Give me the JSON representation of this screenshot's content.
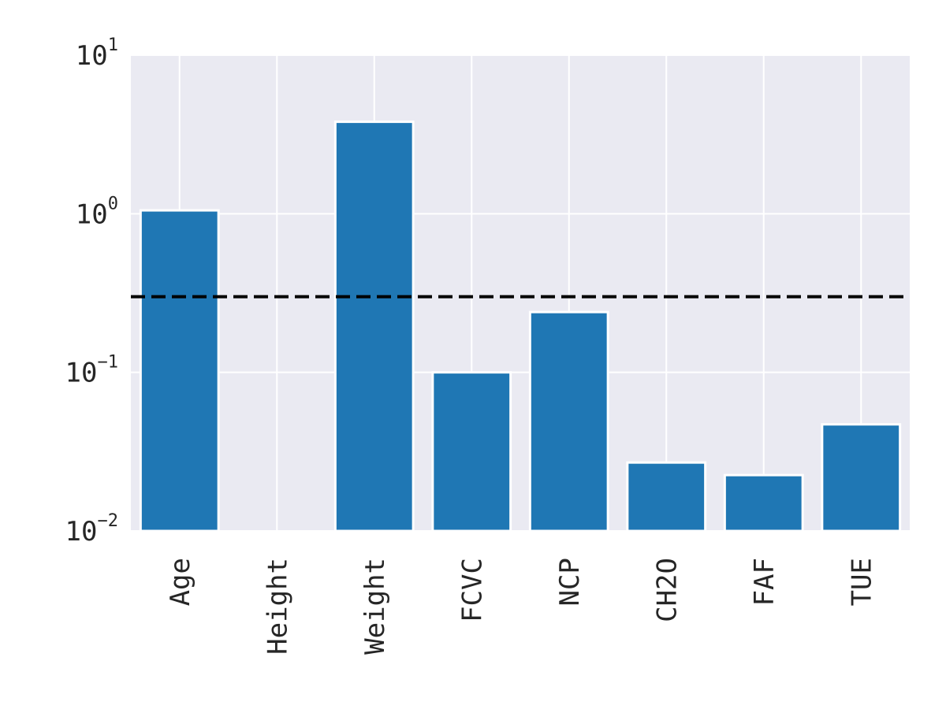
{
  "chart_data": {
    "type": "bar",
    "title": "",
    "xlabel": "",
    "ylabel": "",
    "yscale": "log",
    "ylim": [
      0.01,
      10
    ],
    "grid": true,
    "categories": [
      "Age",
      "Height",
      "Weight",
      "FCVC",
      "NCP",
      "CH2O",
      "FAF",
      "TUE"
    ],
    "values": [
      1.05,
      null,
      3.8,
      0.1,
      0.24,
      0.027,
      0.0225,
      0.047
    ],
    "threshold": 0.3,
    "yticks": [
      {
        "value": 10,
        "base": "10",
        "exp": "1"
      },
      {
        "value": 1,
        "base": "10",
        "exp": "0"
      },
      {
        "value": 0.1,
        "base": "10",
        "exp": "−1"
      },
      {
        "value": 0.01,
        "base": "10",
        "exp": "−2"
      }
    ],
    "colors": {
      "bar": "#1f77b4",
      "plot_bg": "#eaeaf2",
      "grid": "#ffffff",
      "threshold_line": "#000000"
    }
  }
}
